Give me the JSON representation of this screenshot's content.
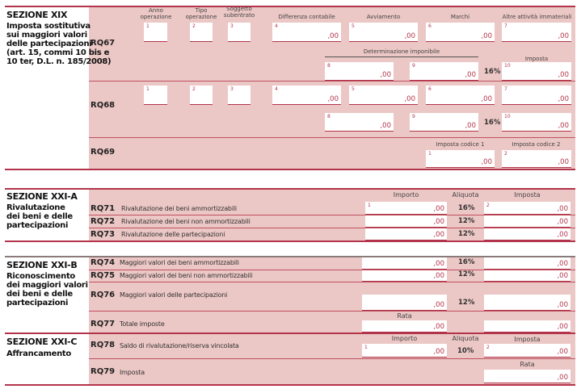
{
  "s19": {
    "title": "SEZIONE XIX",
    "desc": "Imposta sostitutiva\nsui maggiori valori\ndelle partecipazioni\n(art. 15, commi 10 bis e\n10 ter, D.L. n. 185/2008)",
    "headers": {
      "anno": "Anno\noperazione",
      "tipo": "Tipo\noperazione",
      "soggetto": "Soggetto\nsubentrato",
      "differenza": "Differenza contabile",
      "avviamento": "Avviamento",
      "marchi": "Marchi",
      "altre": "Altre attività immateriali",
      "determinazione": "Determinazione imponibile",
      "imposta": "Imposta",
      "codice1": "Imposta codice 1",
      "codice2": "Imposta codice 2"
    },
    "rq67": {
      "code": "RQ67",
      "rate": "16%",
      "f": [
        {
          "n": "1",
          "v": ""
        },
        {
          "n": "2",
          "v": ""
        },
        {
          "n": "3",
          "v": ""
        },
        {
          "n": "4",
          "v": ",00"
        },
        {
          "n": "5",
          "v": ",00"
        },
        {
          "n": "6",
          "v": ",00"
        },
        {
          "n": "7",
          "v": ",00"
        },
        {
          "n": "8",
          "v": ",00"
        },
        {
          "n": "9",
          "v": ",00"
        },
        {
          "n": "10",
          "v": ",00"
        }
      ]
    },
    "rq68": {
      "code": "RQ68",
      "rate": "16%",
      "f": [
        {
          "n": "1",
          "v": ""
        },
        {
          "n": "2",
          "v": ""
        },
        {
          "n": "3",
          "v": ""
        },
        {
          "n": "4",
          "v": ",00"
        },
        {
          "n": "5",
          "v": ",00"
        },
        {
          "n": "6",
          "v": ",00"
        },
        {
          "n": "7",
          "v": ",00"
        },
        {
          "n": "8",
          "v": ",00"
        },
        {
          "n": "9",
          "v": ",00"
        },
        {
          "n": "10",
          "v": ",00"
        }
      ]
    },
    "rq69": {
      "code": "RQ69",
      "f": [
        {
          "n": "1",
          "v": ",00"
        },
        {
          "n": "2",
          "v": ",00"
        }
      ]
    }
  },
  "s21a": {
    "title": "SEZIONE XXI-A",
    "desc": "Rivalutazione\ndei beni e delle\npartecipazioni",
    "headers": {
      "importo": "Importo",
      "aliquota": "Aliquota",
      "imposta": "Imposta"
    },
    "rows": [
      {
        "code": "RQ71",
        "label": "Rivalutazione dei beni ammortizzabili",
        "rate": "16%",
        "n1": "1",
        "v1": ",00",
        "n2": "2",
        "v2": ",00"
      },
      {
        "code": "RQ72",
        "label": "Rivalutazione dei beni non ammortizzabili",
        "rate": "12%",
        "n1": "",
        "v1": ",00",
        "n2": "",
        "v2": ",00"
      },
      {
        "code": "RQ73",
        "label": "Rivalutazione delle partecipazioni",
        "rate": "12%",
        "n1": "",
        "v1": ",00",
        "n2": "",
        "v2": ",00"
      }
    ]
  },
  "s21b": {
    "title": "SEZIONE XXI-B",
    "desc": "Riconoscimento\ndei maggiori valori\ndei beni e delle\npartecipazioni",
    "rows": [
      {
        "code": "RQ74",
        "label": "Maggiori valori dei beni ammortizzabili",
        "rate": "16%",
        "v1": ",00",
        "v2": ",00"
      },
      {
        "code": "RQ75",
        "label": "Maggiori valori dei beni non ammortizzabili",
        "rate": "12%",
        "v1": ",00",
        "v2": ",00"
      },
      {
        "code": "RQ76",
        "label": "Maggiori valori delle partecipazioni",
        "rate": "12%",
        "v1": ",00",
        "v2": ",00"
      },
      {
        "code": "RQ77",
        "label": "Totale imposte",
        "rata": "Rata",
        "v1": ",00",
        "v2": ",00"
      }
    ]
  },
  "s21c": {
    "title": "SEZIONE XXI-C",
    "desc": "Affrancamento",
    "headers": {
      "importo": "Importo",
      "aliquota": "Aliquota",
      "imposta": "Imposta",
      "rata": "Rata"
    },
    "rows": [
      {
        "code": "RQ78",
        "label": "Saldo di rivalutazione/riserva vincolata",
        "rate": "10%",
        "n1": "1",
        "v1": ",00",
        "n2": "2",
        "v2": ",00"
      },
      {
        "code": "RQ79",
        "label": "Imposta",
        "v1": ",00"
      }
    ]
  }
}
